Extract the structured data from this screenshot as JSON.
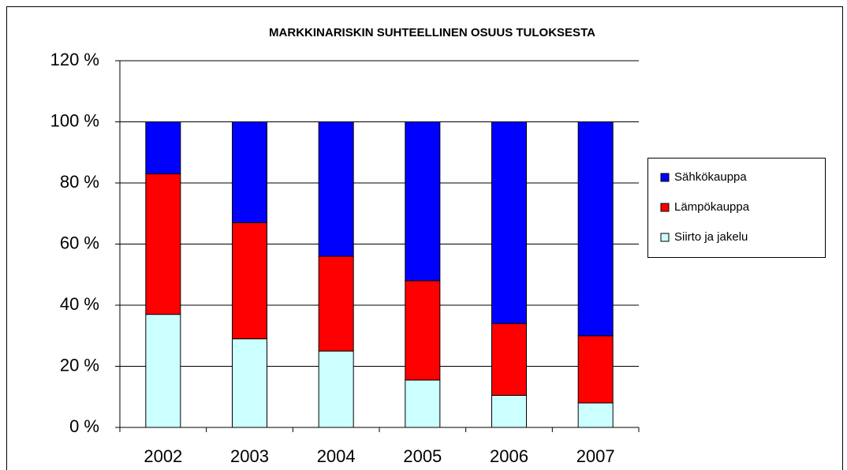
{
  "chart_data": {
    "type": "stacked_bar",
    "title": "MARKKINARISKIN SUHTEELLINEN OSUUS TULOKSESTA",
    "categories": [
      "2002",
      "2003",
      "2004",
      "2005",
      "2006",
      "2007"
    ],
    "series": [
      {
        "name": "Siirto ja jakelu",
        "color": "#ccffff",
        "values": [
          37,
          29,
          25,
          15.5,
          10.5,
          8
        ]
      },
      {
        "name": "Lämpökauppa",
        "color": "#ff0000",
        "values": [
          46,
          38,
          31,
          32.5,
          23.5,
          22
        ]
      },
      {
        "name": "Sähkökauppa",
        "color": "#0000ff",
        "values": [
          17,
          33,
          44,
          52,
          66,
          70
        ]
      }
    ],
    "ylim": [
      0,
      120
    ],
    "yticks": [
      {
        "value": 0,
        "label": "0 %"
      },
      {
        "value": 20,
        "label": "20 %"
      },
      {
        "value": 40,
        "label": "40 %"
      },
      {
        "value": 60,
        "label": "60 %"
      },
      {
        "value": 80,
        "label": "80 %"
      },
      {
        "value": 100,
        "label": "100 %"
      },
      {
        "value": 120,
        "label": "120 %"
      }
    ],
    "grid": true,
    "legend": "right"
  }
}
